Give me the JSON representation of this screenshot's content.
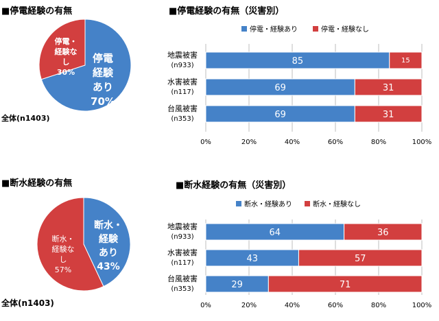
{
  "colors": {
    "blue": "#4582C8",
    "red": "#D23F3F",
    "grid": "#bdbdbd",
    "white_text": "#ffffff"
  },
  "chart_data": [
    {
      "type": "pie",
      "title": "■停電経験の有無",
      "caption": "全体(n1403)",
      "slices": [
        {
          "label_lines": [
            "停電",
            "経験",
            "あり"
          ],
          "value": 70,
          "value_label": "70%"
        },
        {
          "label_lines": [
            "停電・",
            "経験な",
            "し"
          ],
          "value": 30,
          "value_label": "30%"
        }
      ]
    },
    {
      "type": "bar",
      "orientation": "horizontal",
      "stacked": "percent",
      "title": "■停電経験の有無（災害別）",
      "categories": [
        {
          "name": "地震被害",
          "n": "(n933)"
        },
        {
          "name": "水害被害",
          "n": "(n117)"
        },
        {
          "name": "台風被害",
          "n": "(n353)"
        }
      ],
      "series": [
        {
          "name": "停電・経験あり",
          "values": [
            85,
            69,
            69
          ]
        },
        {
          "name": "停電・経験なし",
          "values": [
            15,
            31,
            31
          ]
        }
      ],
      "xlim": [
        0,
        100
      ],
      "x_ticks": [
        "0%",
        "20%",
        "40%",
        "60%",
        "80%",
        "100%"
      ],
      "legend": "top-right",
      "grid": true
    },
    {
      "type": "pie",
      "title": "■断水経験の有無",
      "caption": "全体(n1403)",
      "slices": [
        {
          "label_lines": [
            "断水・",
            "経験",
            "あり"
          ],
          "value": 43,
          "value_label": "43%"
        },
        {
          "label_lines": [
            "断水・",
            "経験な",
            "し"
          ],
          "value": 57,
          "value_label": "57%"
        }
      ]
    },
    {
      "type": "bar",
      "orientation": "horizontal",
      "stacked": "percent",
      "title": "■断水経験の有無（災害別）",
      "categories": [
        {
          "name": "地震被害",
          "n": "(n933)"
        },
        {
          "name": "水害被害",
          "n": "(n117)"
        },
        {
          "name": "台風被害",
          "n": "(n353)"
        }
      ],
      "series": [
        {
          "name": "断水・経験あり",
          "values": [
            64,
            43,
            29
          ]
        },
        {
          "name": "断水・経験なし",
          "values": [
            36,
            57,
            71
          ]
        }
      ],
      "xlim": [
        0,
        100
      ],
      "x_ticks": [
        "0%",
        "20%",
        "40%",
        "60%",
        "80%",
        "100%"
      ],
      "legend": "top-right",
      "grid": true
    }
  ]
}
